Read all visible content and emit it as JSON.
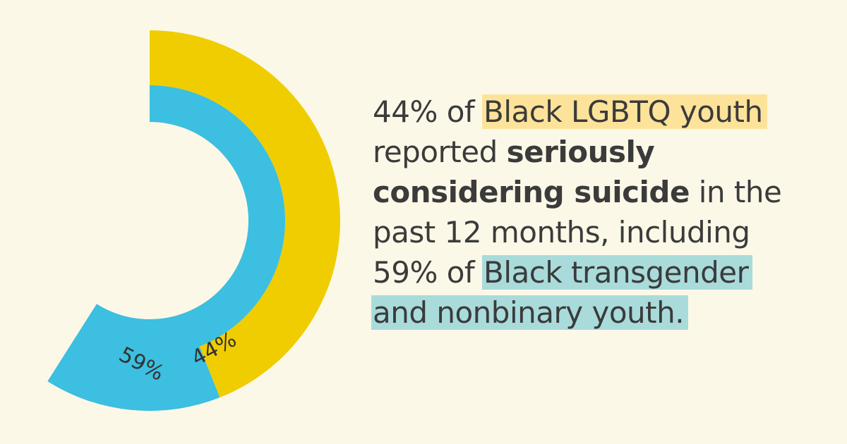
{
  "colors": {
    "background": "#fcf8e8",
    "yellow": "#f0cd00",
    "blue": "#3cbfe0",
    "highlight_yellow": "#fde39a",
    "highlight_teal": "#a9dbdb",
    "text": "#3b3b3b"
  },
  "chart_data": {
    "type": "pie",
    "subtype": "concentric-donut",
    "series": [
      {
        "name": "Black LGBTQ youth",
        "values": [
          44
        ],
        "label": "44%",
        "color": "yellow"
      },
      {
        "name": "Black transgender and nonbinary youth",
        "values": [
          59
        ],
        "label": "59%",
        "color": "blue"
      }
    ],
    "title": "",
    "legend": "none"
  },
  "headline": {
    "line1_pre": "44% of ",
    "line1_highlight": "Black LGBTQ youth",
    "line2_pre": "reported ",
    "line2_bold": "seriously",
    "line3_bold": "considering suicide",
    "line3_post": " in the",
    "line4": "past 12 months, including",
    "line5_pre": "59% of ",
    "line5_highlight": "Black transgender",
    "line6_highlight": "and nonbinary youth."
  }
}
